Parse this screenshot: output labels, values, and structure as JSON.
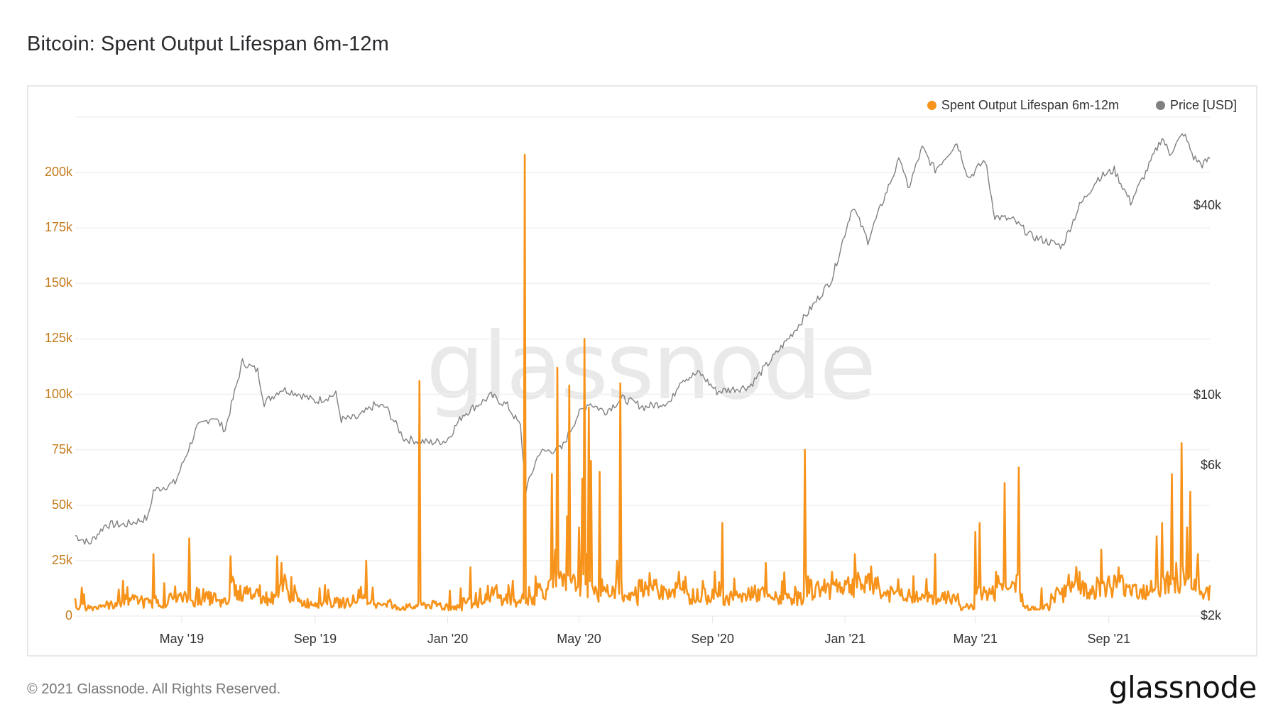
{
  "title": "Bitcoin: Spent Output Lifespan 6m-12m",
  "legend": [
    {
      "label": "Spent Output Lifespan 6m-12m",
      "color": "#f7931a"
    },
    {
      "label": "Price [USD]",
      "color": "#808080"
    }
  ],
  "watermark": "glassnode",
  "footer": {
    "copyright": "© 2021 Glassnode. All Rights Reserved.",
    "logo": "glassnode"
  },
  "chart_data": {
    "type": "line",
    "title": "Bitcoin: Spent Output Lifespan 6m-12m",
    "xlabel": "",
    "ylabel_left": "Spent Output Lifespan 6m-12m",
    "ylabel_right": "Price [USD]",
    "x_ticks": [
      "May '19",
      "Sep '19",
      "Jan '20",
      "May '20",
      "Sep '20",
      "Jan '21",
      "May '21",
      "Sep '21"
    ],
    "y_left_ticks": [
      "0",
      "25k",
      "50k",
      "75k",
      "100k",
      "125k",
      "150k",
      "175k",
      "200k"
    ],
    "y_left_range": [
      0,
      225000
    ],
    "y_right_ticks": [
      "$2k",
      "$6k",
      "$10k",
      "$40k"
    ],
    "y_right_scale": "log",
    "y_right_range": [
      2000,
      80000
    ],
    "grid": true,
    "legend_position": "top-right",
    "x_range": [
      "2019-01-23",
      "2021-12-03"
    ],
    "series": [
      {
        "name": "Spent Output Lifespan 6m-12m",
        "axis": "left",
        "color": "#f7931a",
        "points": [
          [
            "2019-01-23",
            8000
          ],
          [
            "2019-02-01",
            4000
          ],
          [
            "2019-02-15",
            5000
          ],
          [
            "2019-03-01",
            6000
          ],
          [
            "2019-03-08",
            16000
          ],
          [
            "2019-03-15",
            7000
          ],
          [
            "2019-03-25",
            9000
          ],
          [
            "2019-04-01",
            6000
          ],
          [
            "2019-04-05",
            28000
          ],
          [
            "2019-04-08",
            6000
          ],
          [
            "2019-04-20",
            10000
          ],
          [
            "2019-05-01",
            8000
          ],
          [
            "2019-05-08",
            35000
          ],
          [
            "2019-05-10",
            7000
          ],
          [
            "2019-05-20",
            8000
          ],
          [
            "2019-06-01",
            10000
          ],
          [
            "2019-06-08",
            6000
          ],
          [
            "2019-06-15",
            27000
          ],
          [
            "2019-06-20",
            14000
          ],
          [
            "2019-07-01",
            10000
          ],
          [
            "2019-07-10",
            12000
          ],
          [
            "2019-07-20",
            8000
          ],
          [
            "2019-07-28",
            27000
          ],
          [
            "2019-08-01",
            24000
          ],
          [
            "2019-08-05",
            16000
          ],
          [
            "2019-08-15",
            10000
          ],
          [
            "2019-09-01",
            6000
          ],
          [
            "2019-09-10",
            14000
          ],
          [
            "2019-09-20",
            6000
          ],
          [
            "2019-10-01",
            8000
          ],
          [
            "2019-10-10",
            7000
          ],
          [
            "2019-10-18",
            25000
          ],
          [
            "2019-10-22",
            6000
          ],
          [
            "2019-11-10",
            6000
          ],
          [
            "2019-11-25",
            4000
          ],
          [
            "2019-12-03",
            5000
          ],
          [
            "2019-12-06",
            106000
          ],
          [
            "2019-12-09",
            5000
          ],
          [
            "2019-12-25",
            6000
          ],
          [
            "2020-01-05",
            4000
          ],
          [
            "2020-01-15",
            8000
          ],
          [
            "2020-01-22",
            22000
          ],
          [
            "2020-01-25",
            6000
          ],
          [
            "2020-02-05",
            10000
          ],
          [
            "2020-02-15",
            14000
          ],
          [
            "2020-02-22",
            8000
          ],
          [
            "2020-03-01",
            16000
          ],
          [
            "2020-03-06",
            6000
          ],
          [
            "2020-03-10",
            10000
          ],
          [
            "2020-03-12",
            208000
          ],
          [
            "2020-03-14",
            8000
          ],
          [
            "2020-03-22",
            18000
          ],
          [
            "2020-04-02",
            12000
          ],
          [
            "2020-04-06",
            64000
          ],
          [
            "2020-04-09",
            30000
          ],
          [
            "2020-04-11",
            112000
          ],
          [
            "2020-04-14",
            20000
          ],
          [
            "2020-04-20",
            45000
          ],
          [
            "2020-04-22",
            104000
          ],
          [
            "2020-04-24",
            15000
          ],
          [
            "2020-05-01",
            40000
          ],
          [
            "2020-05-04",
            62000
          ],
          [
            "2020-05-06",
            125000
          ],
          [
            "2020-05-08",
            28000
          ],
          [
            "2020-05-10",
            94000
          ],
          [
            "2020-05-12",
            70000
          ],
          [
            "2020-05-15",
            10000
          ],
          [
            "2020-05-20",
            65000
          ],
          [
            "2020-05-25",
            12000
          ],
          [
            "2020-06-05",
            25000
          ],
          [
            "2020-06-08",
            105000
          ],
          [
            "2020-06-10",
            8000
          ],
          [
            "2020-06-25",
            16000
          ],
          [
            "2020-07-10",
            14000
          ],
          [
            "2020-07-20",
            12000
          ],
          [
            "2020-08-01",
            20000
          ],
          [
            "2020-08-10",
            10000
          ],
          [
            "2020-08-22",
            9000
          ],
          [
            "2020-09-01",
            12000
          ],
          [
            "2020-09-10",
            42000
          ],
          [
            "2020-09-13",
            8000
          ],
          [
            "2020-10-01",
            10000
          ],
          [
            "2020-10-20",
            24000
          ],
          [
            "2020-10-25",
            8000
          ],
          [
            "2020-11-10",
            10000
          ],
          [
            "2020-11-20",
            8000
          ],
          [
            "2020-11-25",
            75000
          ],
          [
            "2020-11-28",
            18000
          ],
          [
            "2020-12-10",
            12000
          ],
          [
            "2020-12-20",
            20000
          ],
          [
            "2021-01-01",
            16000
          ],
          [
            "2021-01-10",
            28000
          ],
          [
            "2021-01-20",
            18000
          ],
          [
            "2021-02-01",
            14000
          ],
          [
            "2021-02-15",
            10000
          ],
          [
            "2021-03-01",
            12000
          ],
          [
            "2021-03-15",
            8000
          ],
          [
            "2021-03-25",
            28000
          ],
          [
            "2021-03-28",
            8000
          ],
          [
            "2021-04-15",
            10000
          ],
          [
            "2021-04-22",
            4000
          ],
          [
            "2021-05-01",
            38000
          ],
          [
            "2021-05-05",
            42000
          ],
          [
            "2021-05-08",
            10000
          ],
          [
            "2021-05-20",
            20000
          ],
          [
            "2021-05-28",
            60000
          ],
          [
            "2021-05-31",
            12000
          ],
          [
            "2021-06-05",
            15000
          ],
          [
            "2021-06-10",
            67000
          ],
          [
            "2021-06-13",
            10000
          ],
          [
            "2021-06-25",
            4000
          ],
          [
            "2021-07-10",
            10000
          ],
          [
            "2021-07-25",
            14000
          ],
          [
            "2021-08-05",
            20000
          ],
          [
            "2021-08-15",
            12000
          ],
          [
            "2021-08-25",
            30000
          ],
          [
            "2021-08-28",
            14000
          ],
          [
            "2021-09-10",
            22000
          ],
          [
            "2021-09-20",
            14000
          ],
          [
            "2021-10-01",
            12000
          ],
          [
            "2021-10-10",
            16000
          ],
          [
            "2021-10-15",
            36000
          ],
          [
            "2021-10-20",
            42000
          ],
          [
            "2021-10-25",
            20000
          ],
          [
            "2021-10-29",
            64000
          ],
          [
            "2021-11-02",
            24000
          ],
          [
            "2021-11-07",
            78000
          ],
          [
            "2021-11-10",
            14000
          ],
          [
            "2021-11-12",
            40000
          ],
          [
            "2021-11-15",
            56000
          ],
          [
            "2021-11-18",
            12000
          ],
          [
            "2021-11-22",
            28000
          ],
          [
            "2021-11-28",
            10000
          ],
          [
            "2021-12-03",
            14000
          ]
        ]
      },
      {
        "name": "Price [USD]",
        "axis": "right",
        "color": "#808080",
        "points": [
          [
            "2019-01-23",
            3600
          ],
          [
            "2019-02-05",
            3400
          ],
          [
            "2019-02-20",
            3900
          ],
          [
            "2019-03-10",
            3900
          ],
          [
            "2019-03-31",
            4100
          ],
          [
            "2019-04-05",
            5000
          ],
          [
            "2019-04-25",
            5300
          ],
          [
            "2019-05-15",
            7900
          ],
          [
            "2019-05-30",
            8600
          ],
          [
            "2019-06-10",
            7800
          ],
          [
            "2019-06-26",
            12800
          ],
          [
            "2019-07-10",
            12000
          ],
          [
            "2019-07-16",
            9500
          ],
          [
            "2019-08-01",
            10500
          ],
          [
            "2019-08-15",
            10200
          ],
          [
            "2019-09-01",
            9600
          ],
          [
            "2019-09-20",
            10100
          ],
          [
            "2019-09-25",
            8400
          ],
          [
            "2019-10-10",
            8500
          ],
          [
            "2019-10-25",
            9300
          ],
          [
            "2019-11-05",
            9200
          ],
          [
            "2019-11-22",
            7300
          ],
          [
            "2019-12-15",
            7100
          ],
          [
            "2019-12-31",
            7200
          ],
          [
            "2020-01-15",
            8700
          ],
          [
            "2020-02-10",
            10000
          ],
          [
            "2020-02-25",
            9300
          ],
          [
            "2020-03-08",
            8000
          ],
          [
            "2020-03-13",
            5000
          ],
          [
            "2020-03-25",
            6600
          ],
          [
            "2020-04-15",
            6800
          ],
          [
            "2020-04-30",
            8700
          ],
          [
            "2020-05-10",
            9500
          ],
          [
            "2020-05-25",
            8900
          ],
          [
            "2020-06-10",
            9800
          ],
          [
            "2020-06-30",
            9200
          ],
          [
            "2020-07-25",
            9600
          ],
          [
            "2020-08-02",
            11200
          ],
          [
            "2020-08-20",
            11800
          ],
          [
            "2020-09-05",
            10300
          ],
          [
            "2020-10-05",
            10700
          ],
          [
            "2020-10-25",
            13000
          ],
          [
            "2020-11-15",
            16000
          ],
          [
            "2020-12-01",
            19000
          ],
          [
            "2020-12-20",
            23500
          ],
          [
            "2021-01-08",
            40000
          ],
          [
            "2021-01-22",
            31000
          ],
          [
            "2021-02-10",
            46000
          ],
          [
            "2021-02-21",
            57000
          ],
          [
            "2021-02-28",
            45000
          ],
          [
            "2021-03-13",
            61000
          ],
          [
            "2021-03-25",
            52000
          ],
          [
            "2021-04-14",
            63500
          ],
          [
            "2021-04-25",
            49000
          ],
          [
            "2021-05-10",
            56000
          ],
          [
            "2021-05-19",
            37000
          ],
          [
            "2021-06-05",
            36000
          ],
          [
            "2021-06-22",
            32000
          ],
          [
            "2021-07-20",
            29800
          ],
          [
            "2021-08-05",
            40000
          ],
          [
            "2021-08-22",
            49000
          ],
          [
            "2021-09-06",
            52000
          ],
          [
            "2021-09-21",
            41000
          ],
          [
            "2021-10-05",
            51000
          ],
          [
            "2021-10-20",
            66000
          ],
          [
            "2021-10-27",
            58500
          ],
          [
            "2021-11-09",
            68000
          ],
          [
            "2021-11-18",
            57000
          ],
          [
            "2021-11-26",
            54000
          ],
          [
            "2021-12-03",
            56500
          ]
        ]
      }
    ]
  }
}
